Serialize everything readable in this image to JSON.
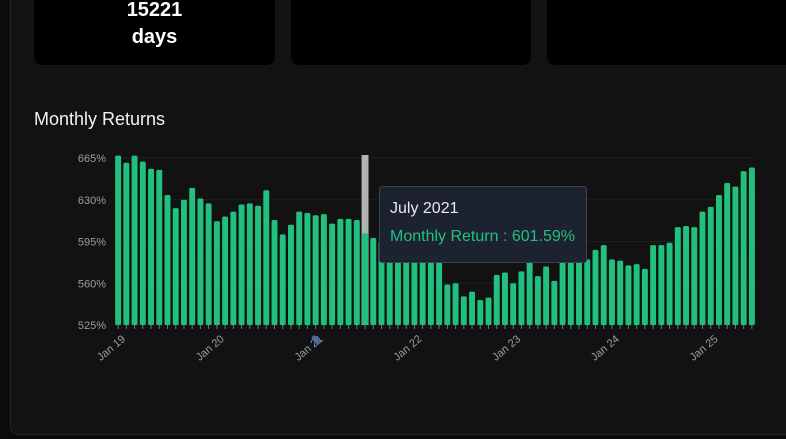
{
  "stats": [
    {
      "value_line1": "15221",
      "value_line2": "days"
    },
    {
      "value_line1": "",
      "value_line2": ""
    },
    {
      "value_line1": "",
      "value_line2": ""
    }
  ],
  "section_title": "Monthly Returns",
  "tooltip": {
    "title": "July 2021",
    "label": "Monthly Return : 601.59%"
  },
  "colors": {
    "bar": "#22c07e",
    "highlight": "#cfcfcf",
    "axis": "#9a9ea5"
  },
  "chart_data": {
    "type": "bar",
    "title": "Monthly Returns",
    "ylim": [
      525,
      670
    ],
    "yticks": [
      525,
      560,
      595,
      630,
      665
    ],
    "ytick_labels": [
      "525%",
      "560%",
      "595%",
      "630%",
      "665%"
    ],
    "xtick_labels": [
      "Jan 19",
      "Jan 20",
      "Jan 21",
      "Jan 22",
      "Jan 23",
      "Jan 24",
      "Jan 25"
    ],
    "xtick_indices": [
      0,
      12,
      24,
      36,
      48,
      60,
      72
    ],
    "highlight_index": 30,
    "grid": true,
    "values": [
      667,
      661,
      667,
      662,
      656,
      655,
      634,
      623,
      630,
      640,
      631,
      627,
      612,
      616,
      620,
      626,
      627,
      625,
      638,
      613,
      601,
      609,
      620,
      619,
      617,
      618,
      610,
      614,
      614,
      613,
      602,
      598,
      595,
      593,
      593,
      591,
      594,
      592,
      584,
      584,
      559,
      560,
      549,
      553,
      546,
      548,
      567,
      569,
      560,
      570,
      585,
      566,
      574,
      562,
      580,
      585,
      582,
      580,
      588,
      592,
      580,
      579,
      575,
      576,
      572,
      592,
      592,
      594,
      607,
      608,
      607,
      620,
      624,
      634,
      644,
      641,
      654,
      657
    ]
  }
}
